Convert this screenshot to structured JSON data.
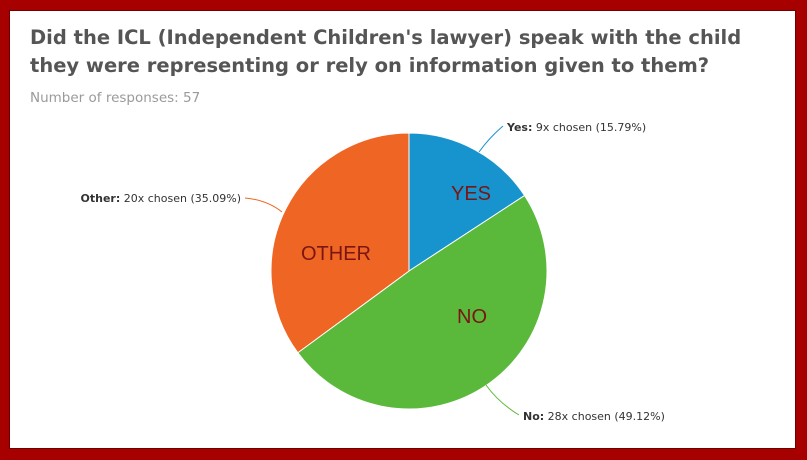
{
  "title": "Did the ICL (Independent Children's lawyer) speak with the child they were representing or rely on information given to them?",
  "subtitle": "Number of responses: 57",
  "chart_data": {
    "type": "pie",
    "title": "Did the ICL (Independent Children's lawyer) speak with the child they were representing or rely on information given to them?",
    "subtitle": "Number of responses: 57",
    "total_responses": 57,
    "slices": [
      {
        "name": "Yes",
        "inner_label": "YES",
        "count": 9,
        "percent": 15.79,
        "callout_detail": "9x chosen (15.79%)",
        "color": "#1793ce"
      },
      {
        "name": "No",
        "inner_label": "NO",
        "count": 28,
        "percent": 49.12,
        "callout_detail": "28x chosen (49.12%)",
        "color": "#5ab93b"
      },
      {
        "name": "Other",
        "inner_label": "OTHER",
        "count": 20,
        "percent": 35.09,
        "callout_detail": "20x chosen (35.09%)",
        "color": "#ef6523"
      }
    ]
  },
  "colors": {
    "frame": "#a60000",
    "inner_label": "#7a1612",
    "text": "#333333"
  }
}
